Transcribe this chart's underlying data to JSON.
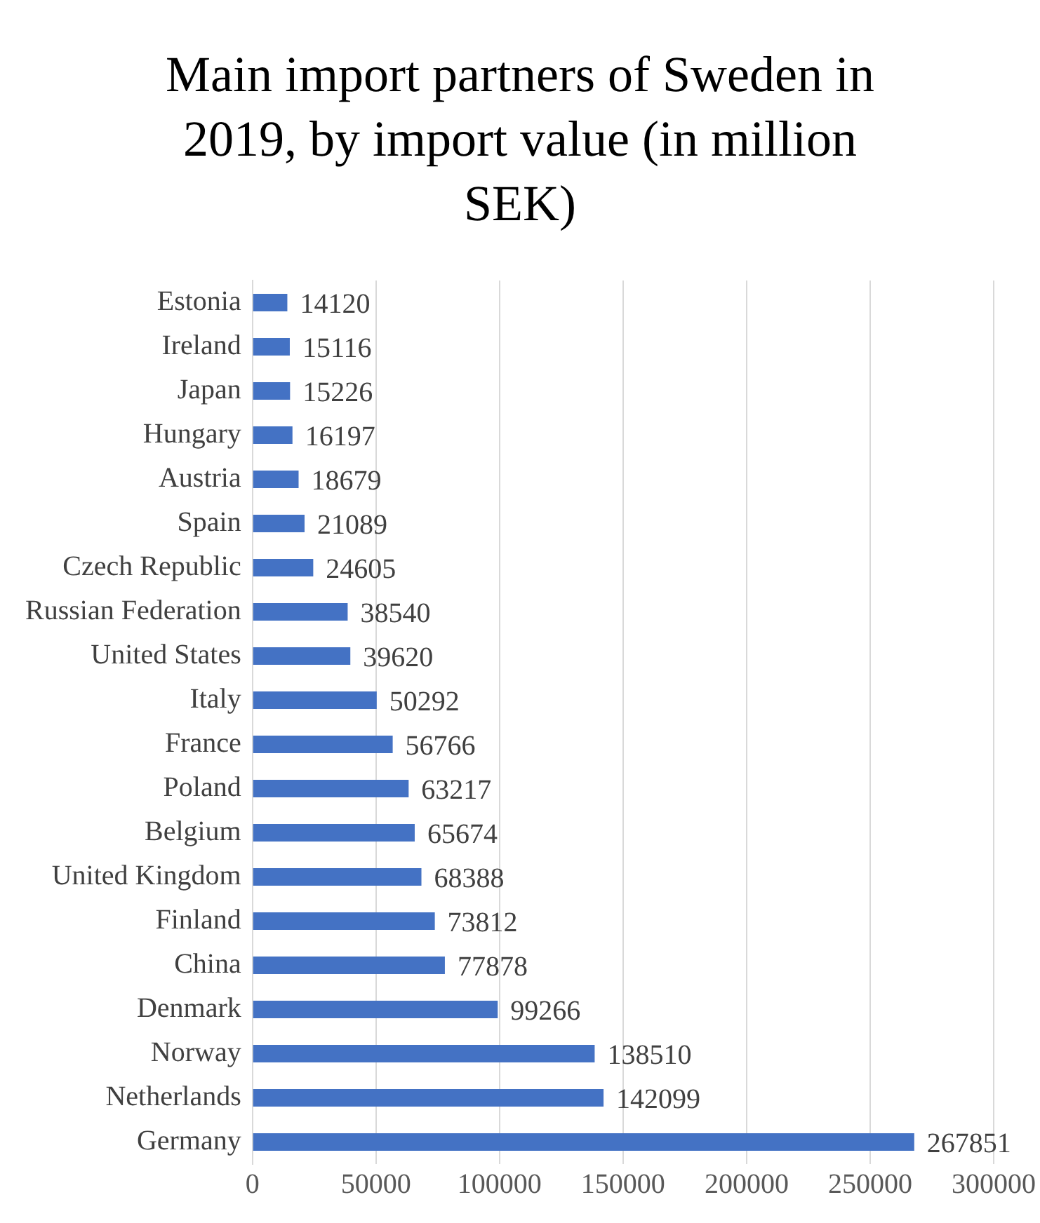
{
  "chart_data": {
    "type": "bar",
    "orientation": "horizontal",
    "title": "Main import partners of Sweden in 2019, by import value (in million SEK)",
    "categories": [
      "Estonia",
      "Ireland",
      "Japan",
      "Hungary",
      "Austria",
      "Spain",
      "Czech Republic",
      "Russian Federation",
      "United States",
      "Italy",
      "France",
      "Poland",
      "Belgium",
      "United Kingdom",
      "Finland",
      "China",
      "Denmark",
      "Norway",
      "Netherlands",
      "Germany"
    ],
    "values": [
      14120,
      15116,
      15226,
      16197,
      18679,
      21089,
      24605,
      38540,
      39620,
      50292,
      56766,
      63217,
      65674,
      68388,
      73812,
      77878,
      99266,
      138510,
      142099,
      267851
    ],
    "color": "#4472c4",
    "xlim": [
      0,
      300000
    ],
    "xticks": [
      0,
      50000,
      100000,
      150000,
      200000,
      250000,
      300000
    ],
    "grid": "x",
    "data_labels": true
  }
}
